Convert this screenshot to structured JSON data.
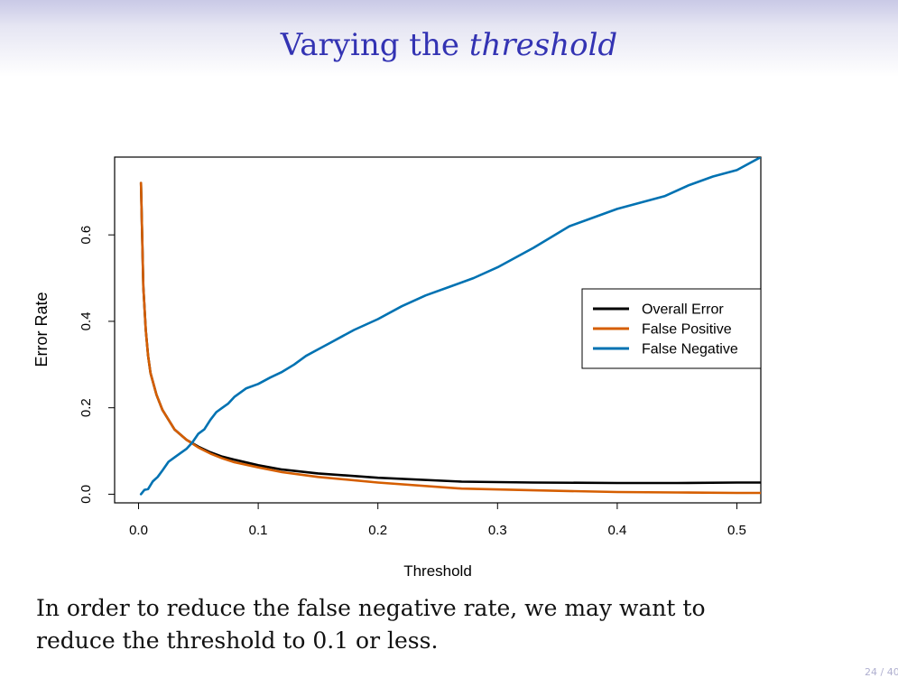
{
  "slide": {
    "title_plain": "Varying the",
    "title_italic": "threshold",
    "body_line1": "In order to reduce the false negative rate, we may want to",
    "body_line2": "reduce the threshold to 0.1 or less.",
    "page_number": "24 / 40"
  },
  "chart_data": {
    "type": "line",
    "title": "",
    "xlabel": "Threshold",
    "ylabel": "Error Rate",
    "xlim": [
      -0.02,
      0.52
    ],
    "ylim": [
      -0.02,
      0.78
    ],
    "xticks": [
      0.0,
      0.1,
      0.2,
      0.3,
      0.4,
      0.5
    ],
    "xtick_labels": [
      "0.0",
      "0.1",
      "0.2",
      "0.3",
      "0.4",
      "0.5"
    ],
    "yticks": [
      0.0,
      0.2,
      0.4,
      0.6
    ],
    "ytick_labels": [
      "0.0",
      "0.2",
      "0.4",
      "0.6"
    ],
    "grid": false,
    "legend_position": "right",
    "series": [
      {
        "name": "Overall Error",
        "color": "#000000",
        "x": [
          0.002,
          0.003,
          0.004,
          0.006,
          0.008,
          0.01,
          0.015,
          0.02,
          0.03,
          0.04,
          0.05,
          0.06,
          0.07,
          0.08,
          0.1,
          0.12,
          0.15,
          0.2,
          0.27,
          0.33,
          0.4,
          0.45,
          0.5,
          0.52
        ],
        "y": [
          0.72,
          0.6,
          0.48,
          0.38,
          0.32,
          0.28,
          0.23,
          0.195,
          0.15,
          0.126,
          0.11,
          0.097,
          0.087,
          0.08,
          0.067,
          0.057,
          0.048,
          0.038,
          0.029,
          0.027,
          0.026,
          0.026,
          0.027,
          0.027
        ]
      },
      {
        "name": "False Positive",
        "color": "#d55e00",
        "x": [
          0.002,
          0.003,
          0.004,
          0.006,
          0.008,
          0.01,
          0.015,
          0.02,
          0.03,
          0.04,
          0.05,
          0.06,
          0.07,
          0.08,
          0.1,
          0.12,
          0.15,
          0.2,
          0.27,
          0.33,
          0.4,
          0.45,
          0.5,
          0.52
        ],
        "y": [
          0.72,
          0.6,
          0.48,
          0.38,
          0.32,
          0.28,
          0.23,
          0.195,
          0.15,
          0.126,
          0.108,
          0.094,
          0.083,
          0.074,
          0.062,
          0.051,
          0.04,
          0.027,
          0.013,
          0.009,
          0.005,
          0.004,
          0.003,
          0.003
        ]
      },
      {
        "name": "False Negative",
        "color": "#0072b2",
        "x": [
          0.002,
          0.005,
          0.008,
          0.012,
          0.016,
          0.02,
          0.025,
          0.03,
          0.035,
          0.04,
          0.045,
          0.05,
          0.055,
          0.06,
          0.065,
          0.07,
          0.075,
          0.08,
          0.09,
          0.1,
          0.11,
          0.12,
          0.13,
          0.14,
          0.15,
          0.16,
          0.17,
          0.18,
          0.2,
          0.22,
          0.24,
          0.26,
          0.28,
          0.3,
          0.33,
          0.36,
          0.38,
          0.4,
          0.42,
          0.44,
          0.46,
          0.48,
          0.5,
          0.52
        ],
        "y": [
          0.0,
          0.01,
          0.012,
          0.03,
          0.04,
          0.055,
          0.075,
          0.085,
          0.095,
          0.105,
          0.12,
          0.14,
          0.15,
          0.172,
          0.19,
          0.2,
          0.21,
          0.225,
          0.245,
          0.255,
          0.27,
          0.283,
          0.3,
          0.32,
          0.335,
          0.35,
          0.365,
          0.38,
          0.405,
          0.435,
          0.46,
          0.48,
          0.5,
          0.525,
          0.57,
          0.62,
          0.64,
          0.66,
          0.675,
          0.69,
          0.715,
          0.735,
          0.75,
          0.78
        ]
      }
    ]
  }
}
